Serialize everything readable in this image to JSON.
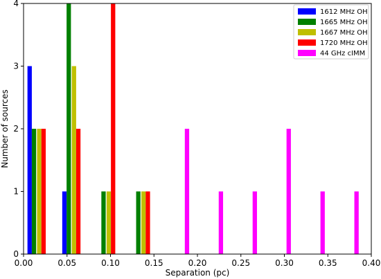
{
  "chart_data": {
    "type": "bar",
    "xlabel": "Separation (pc)",
    "ylabel": "Number of sources",
    "xlim": [
      0.0,
      0.4
    ],
    "ylim": [
      0,
      4
    ],
    "xticks": [
      "0.00",
      "0.05",
      "0.10",
      "0.15",
      "0.20",
      "0.25",
      "0.30",
      "0.35",
      "0.40"
    ],
    "yticks": [
      "0",
      "1",
      "2",
      "3",
      "4"
    ],
    "grid": false,
    "legend_position": "top-right",
    "bar_width": 0.005,
    "series": [
      {
        "name": "1612 MHz OH",
        "color": "#0000ff",
        "points": [
          {
            "x": 0.007,
            "y": 3
          },
          {
            "x": 0.047,
            "y": 1
          }
        ]
      },
      {
        "name": "1665 MHz OH",
        "color": "#008000",
        "points": [
          {
            "x": 0.012,
            "y": 2
          },
          {
            "x": 0.052,
            "y": 4
          },
          {
            "x": 0.092,
            "y": 1
          },
          {
            "x": 0.132,
            "y": 1
          }
        ]
      },
      {
        "name": "1667 MHz OH",
        "color": "#bfbf00",
        "points": [
          {
            "x": 0.018,
            "y": 2
          },
          {
            "x": 0.058,
            "y": 3
          },
          {
            "x": 0.098,
            "y": 1
          },
          {
            "x": 0.138,
            "y": 1
          }
        ]
      },
      {
        "name": "1720 MHz OH",
        "color": "#ff0000",
        "points": [
          {
            "x": 0.023,
            "y": 2
          },
          {
            "x": 0.063,
            "y": 2
          },
          {
            "x": 0.103,
            "y": 4
          },
          {
            "x": 0.143,
            "y": 1
          }
        ]
      },
      {
        "name": "44 GHz cIMM",
        "color": "#ff00ff",
        "points": [
          {
            "x": 0.188,
            "y": 2
          },
          {
            "x": 0.227,
            "y": 1
          },
          {
            "x": 0.266,
            "y": 1
          },
          {
            "x": 0.305,
            "y": 2
          },
          {
            "x": 0.344,
            "y": 1
          },
          {
            "x": 0.383,
            "y": 1
          }
        ]
      }
    ]
  }
}
